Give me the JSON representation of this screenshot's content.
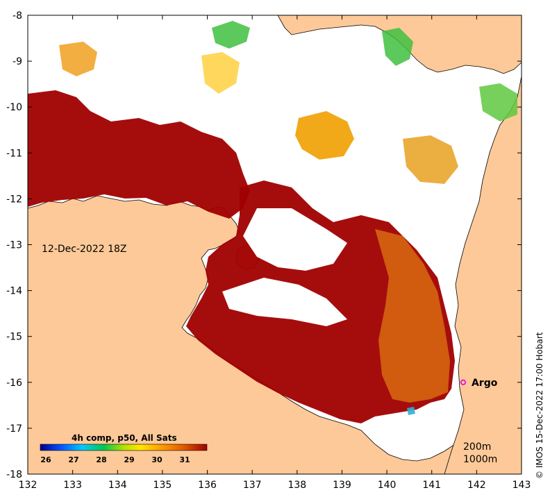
{
  "map": {
    "date_label": "12-Dec-2022 18Z",
    "lon_ticks": [
      "132",
      "133",
      "134",
      "135",
      "136",
      "137",
      "138",
      "139",
      "140",
      "141",
      "142",
      "143"
    ],
    "lat_ticks": [
      "-8",
      "-9",
      "-10",
      "-11",
      "-12",
      "-13",
      "-14",
      "-15",
      "-16",
      "-17",
      "-18"
    ],
    "lon_range": [
      132,
      143
    ],
    "lat_range": [
      -18,
      -8
    ],
    "argo": {
      "label": "Argo",
      "lon": 141.7,
      "lat": -16.0,
      "marker_color": "#e000e0"
    },
    "depth_labels": [
      "200m",
      "1000m"
    ],
    "colorbar": {
      "title": "4h comp, p50, All Sats",
      "ticks": [
        "26",
        "27",
        "28",
        "29",
        "30",
        "31"
      ],
      "range": [
        25.8,
        31.8
      ],
      "colors": [
        "#00008b",
        "#0050ff",
        "#00c8ff",
        "#00c850",
        "#b4e000",
        "#ffe600",
        "#ffa000",
        "#e05a00",
        "#a00000"
      ]
    },
    "land_color": "#fdc998",
    "sst_hot_color": "#a00000",
    "credit": "© IMOS 15-Dec-2022 17:00 Hobart"
  }
}
